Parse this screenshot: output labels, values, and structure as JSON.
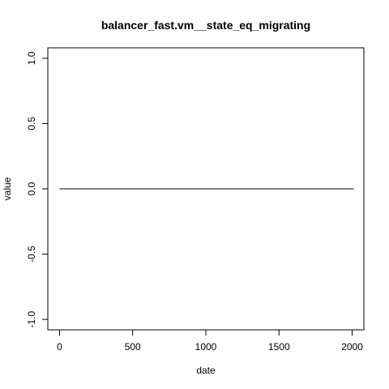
{
  "chart_data": {
    "type": "line",
    "title": "balancer_fast.vm__state_eq_migrating",
    "xlabel": "date",
    "ylabel": "value",
    "xlim": [
      -80,
      2080
    ],
    "ylim": [
      -1.08,
      1.08
    ],
    "x_ticks": [
      0,
      500,
      1000,
      1500,
      2000
    ],
    "x_tick_labels": [
      "0",
      "500",
      "1000",
      "1500",
      "2000"
    ],
    "y_ticks": [
      -1.0,
      -0.5,
      0.0,
      0.5,
      1.0
    ],
    "y_tick_labels": [
      "-1.0",
      "-0.5",
      "0.0",
      "0.5",
      "1.0"
    ],
    "grid": false,
    "series": [
      {
        "color": "#000000",
        "x": [
          0,
          2010
        ],
        "y": [
          0,
          0
        ]
      }
    ]
  }
}
